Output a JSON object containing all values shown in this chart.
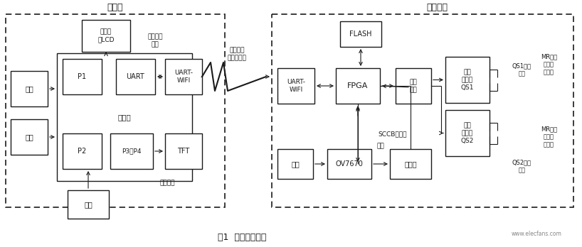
{
  "title": "图1  装置硬件结构",
  "bg_color": "#ffffff",
  "line_color": "#1a1a1a",
  "text_color": "#1a1a1a",
  "fig_width": 8.18,
  "fig_height": 3.48,
  "dpi": 100,
  "left_label": "控制箱",
  "right_label": "调档机构",
  "bottom_title": "图1  装置硬件结构",
  "caption_tiaodang_pulse": "调档脉冲\n数据",
  "caption_tiaodang_img": "调档脉冲\n及图像数据",
  "caption_kongzhi": "控制显示",
  "caption_sccb": "SCCB、并口",
  "caption_bingkou": "并口",
  "caption_qs1": "QS1常开\n接点",
  "caption_qs2": "QS2常开\n接点",
  "caption_mr1": "MR档位\n升继电\n器常开",
  "caption_mr2": "MR档位\n降继电\n器常开",
  "watermark": "www.elecfans.com"
}
